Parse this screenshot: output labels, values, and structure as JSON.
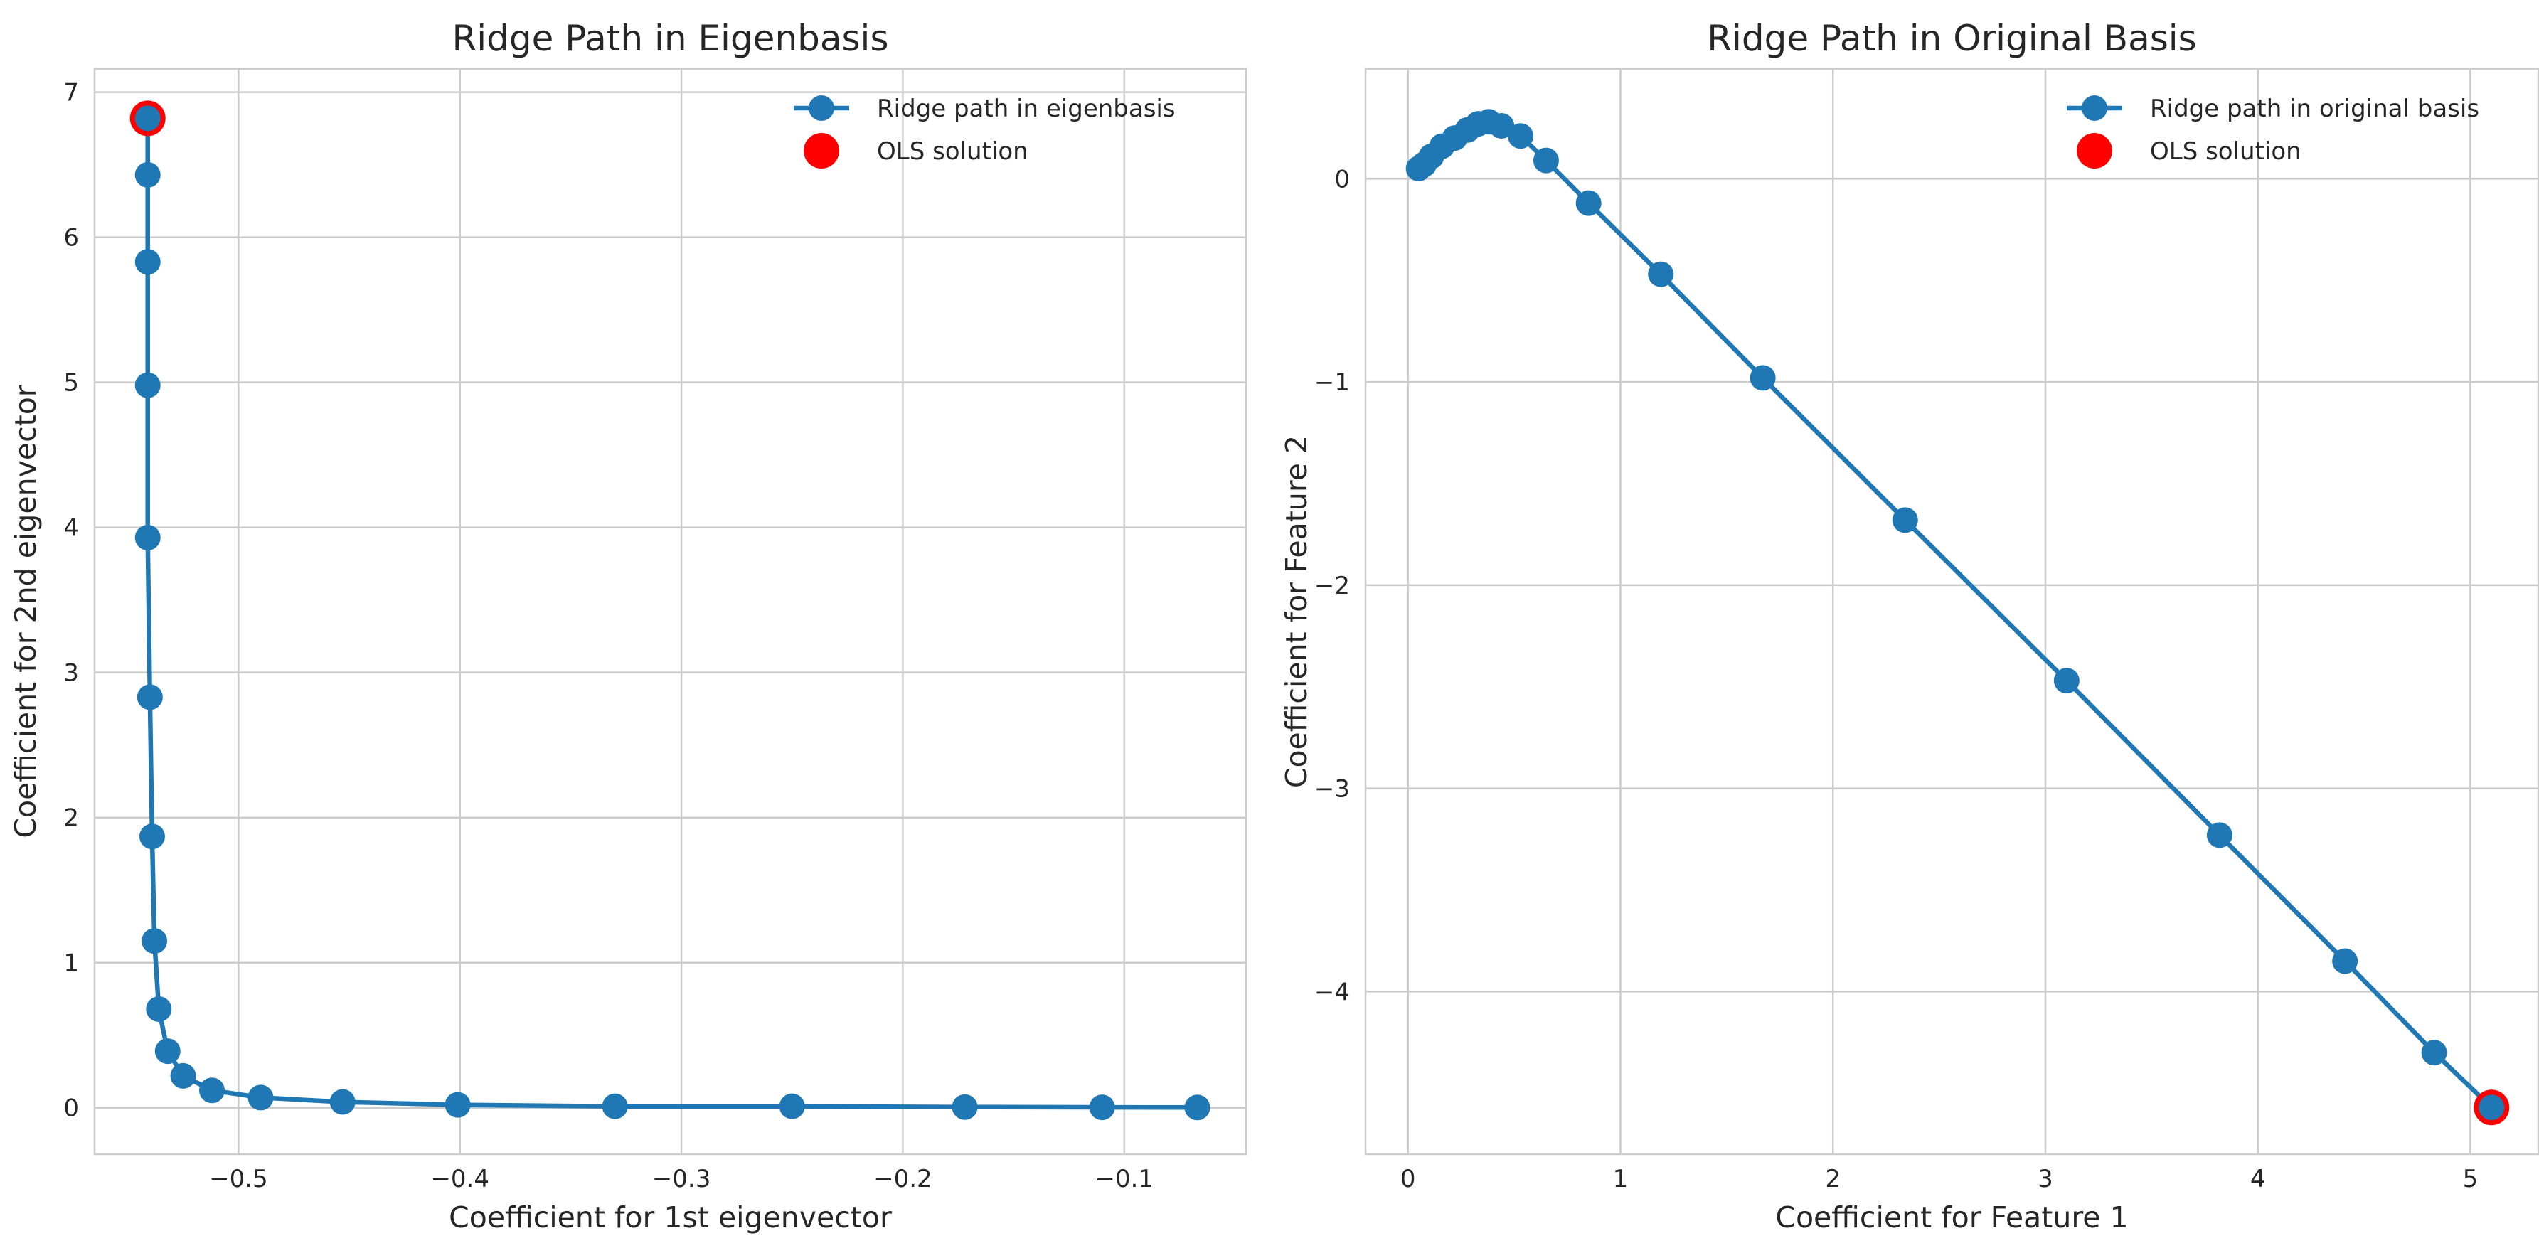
{
  "chart_data": [
    {
      "type": "line",
      "title": "Ridge Path in Eigenbasis",
      "xlabel": "Coefficient for 1st eigenvector",
      "ylabel": "Coefficient for 2nd eigenvector",
      "xlim": [
        -0.565,
        -0.045
      ],
      "ylim": [
        -0.32,
        7.16
      ],
      "xticks": [
        -0.5,
        -0.4,
        -0.3,
        -0.2,
        -0.1
      ],
      "xtick_labels": [
        "−0.5",
        "−0.4",
        "−0.3",
        "−0.2",
        "−0.1"
      ],
      "yticks": [
        0,
        1,
        2,
        3,
        4,
        5,
        6,
        7
      ],
      "ytick_labels": [
        "0",
        "1",
        "2",
        "3",
        "4",
        "5",
        "6",
        "7"
      ],
      "grid": true,
      "legend_position": "top-right",
      "series": [
        {
          "name": "Ridge path in eigenbasis",
          "color": "#1f77b4",
          "marker": "circle",
          "x": [
            -0.541,
            -0.541,
            -0.541,
            -0.541,
            -0.541,
            -0.54,
            -0.539,
            -0.538,
            -0.536,
            -0.532,
            -0.525,
            -0.512,
            -0.49,
            -0.453,
            -0.401,
            -0.33,
            -0.25,
            -0.172,
            -0.11,
            -0.067
          ],
          "y": [
            6.82,
            6.43,
            5.83,
            4.98,
            3.93,
            2.83,
            1.87,
            1.15,
            0.68,
            0.39,
            0.22,
            0.12,
            0.07,
            0.04,
            0.02,
            0.01,
            0.01,
            0.005,
            0.003,
            0.002
          ]
        },
        {
          "name": "OLS solution",
          "color": "#ff0000",
          "marker": "circle",
          "x": [
            -0.541
          ],
          "y": [
            6.82
          ]
        }
      ]
    },
    {
      "type": "line",
      "title": "Ridge Path in Original Basis",
      "xlabel": "Coefficient for Feature 1",
      "ylabel": "Coefficient for Feature 2",
      "xlim": [
        -0.2,
        5.32
      ],
      "ylim": [
        -4.8,
        0.54
      ],
      "xticks": [
        0,
        1,
        2,
        3,
        4,
        5
      ],
      "xtick_labels": [
        "0",
        "1",
        "2",
        "3",
        "4",
        "5"
      ],
      "yticks": [
        0,
        -1,
        -2,
        -3,
        -4
      ],
      "ytick_labels": [
        "0",
        "−1",
        "−2",
        "−3",
        "−4"
      ],
      "grid": true,
      "legend_position": "top-right",
      "series": [
        {
          "name": "Ridge path in original basis",
          "color": "#1f77b4",
          "marker": "circle",
          "x": [
            5.1,
            4.83,
            4.41,
            3.82,
            3.1,
            2.34,
            1.67,
            1.19,
            0.85,
            0.65,
            0.53,
            0.44,
            0.38,
            0.33,
            0.28,
            0.22,
            0.16,
            0.11,
            0.075,
            0.05
          ],
          "y": [
            -4.57,
            -4.3,
            -3.85,
            -3.23,
            -2.47,
            -1.68,
            -0.98,
            -0.47,
            -0.12,
            0.09,
            0.21,
            0.26,
            0.28,
            0.27,
            0.24,
            0.2,
            0.16,
            0.11,
            0.07,
            0.05
          ]
        },
        {
          "name": "OLS solution",
          "color": "#ff0000",
          "marker": "circle",
          "x": [
            5.1
          ],
          "y": [
            -4.57
          ]
        }
      ]
    }
  ]
}
